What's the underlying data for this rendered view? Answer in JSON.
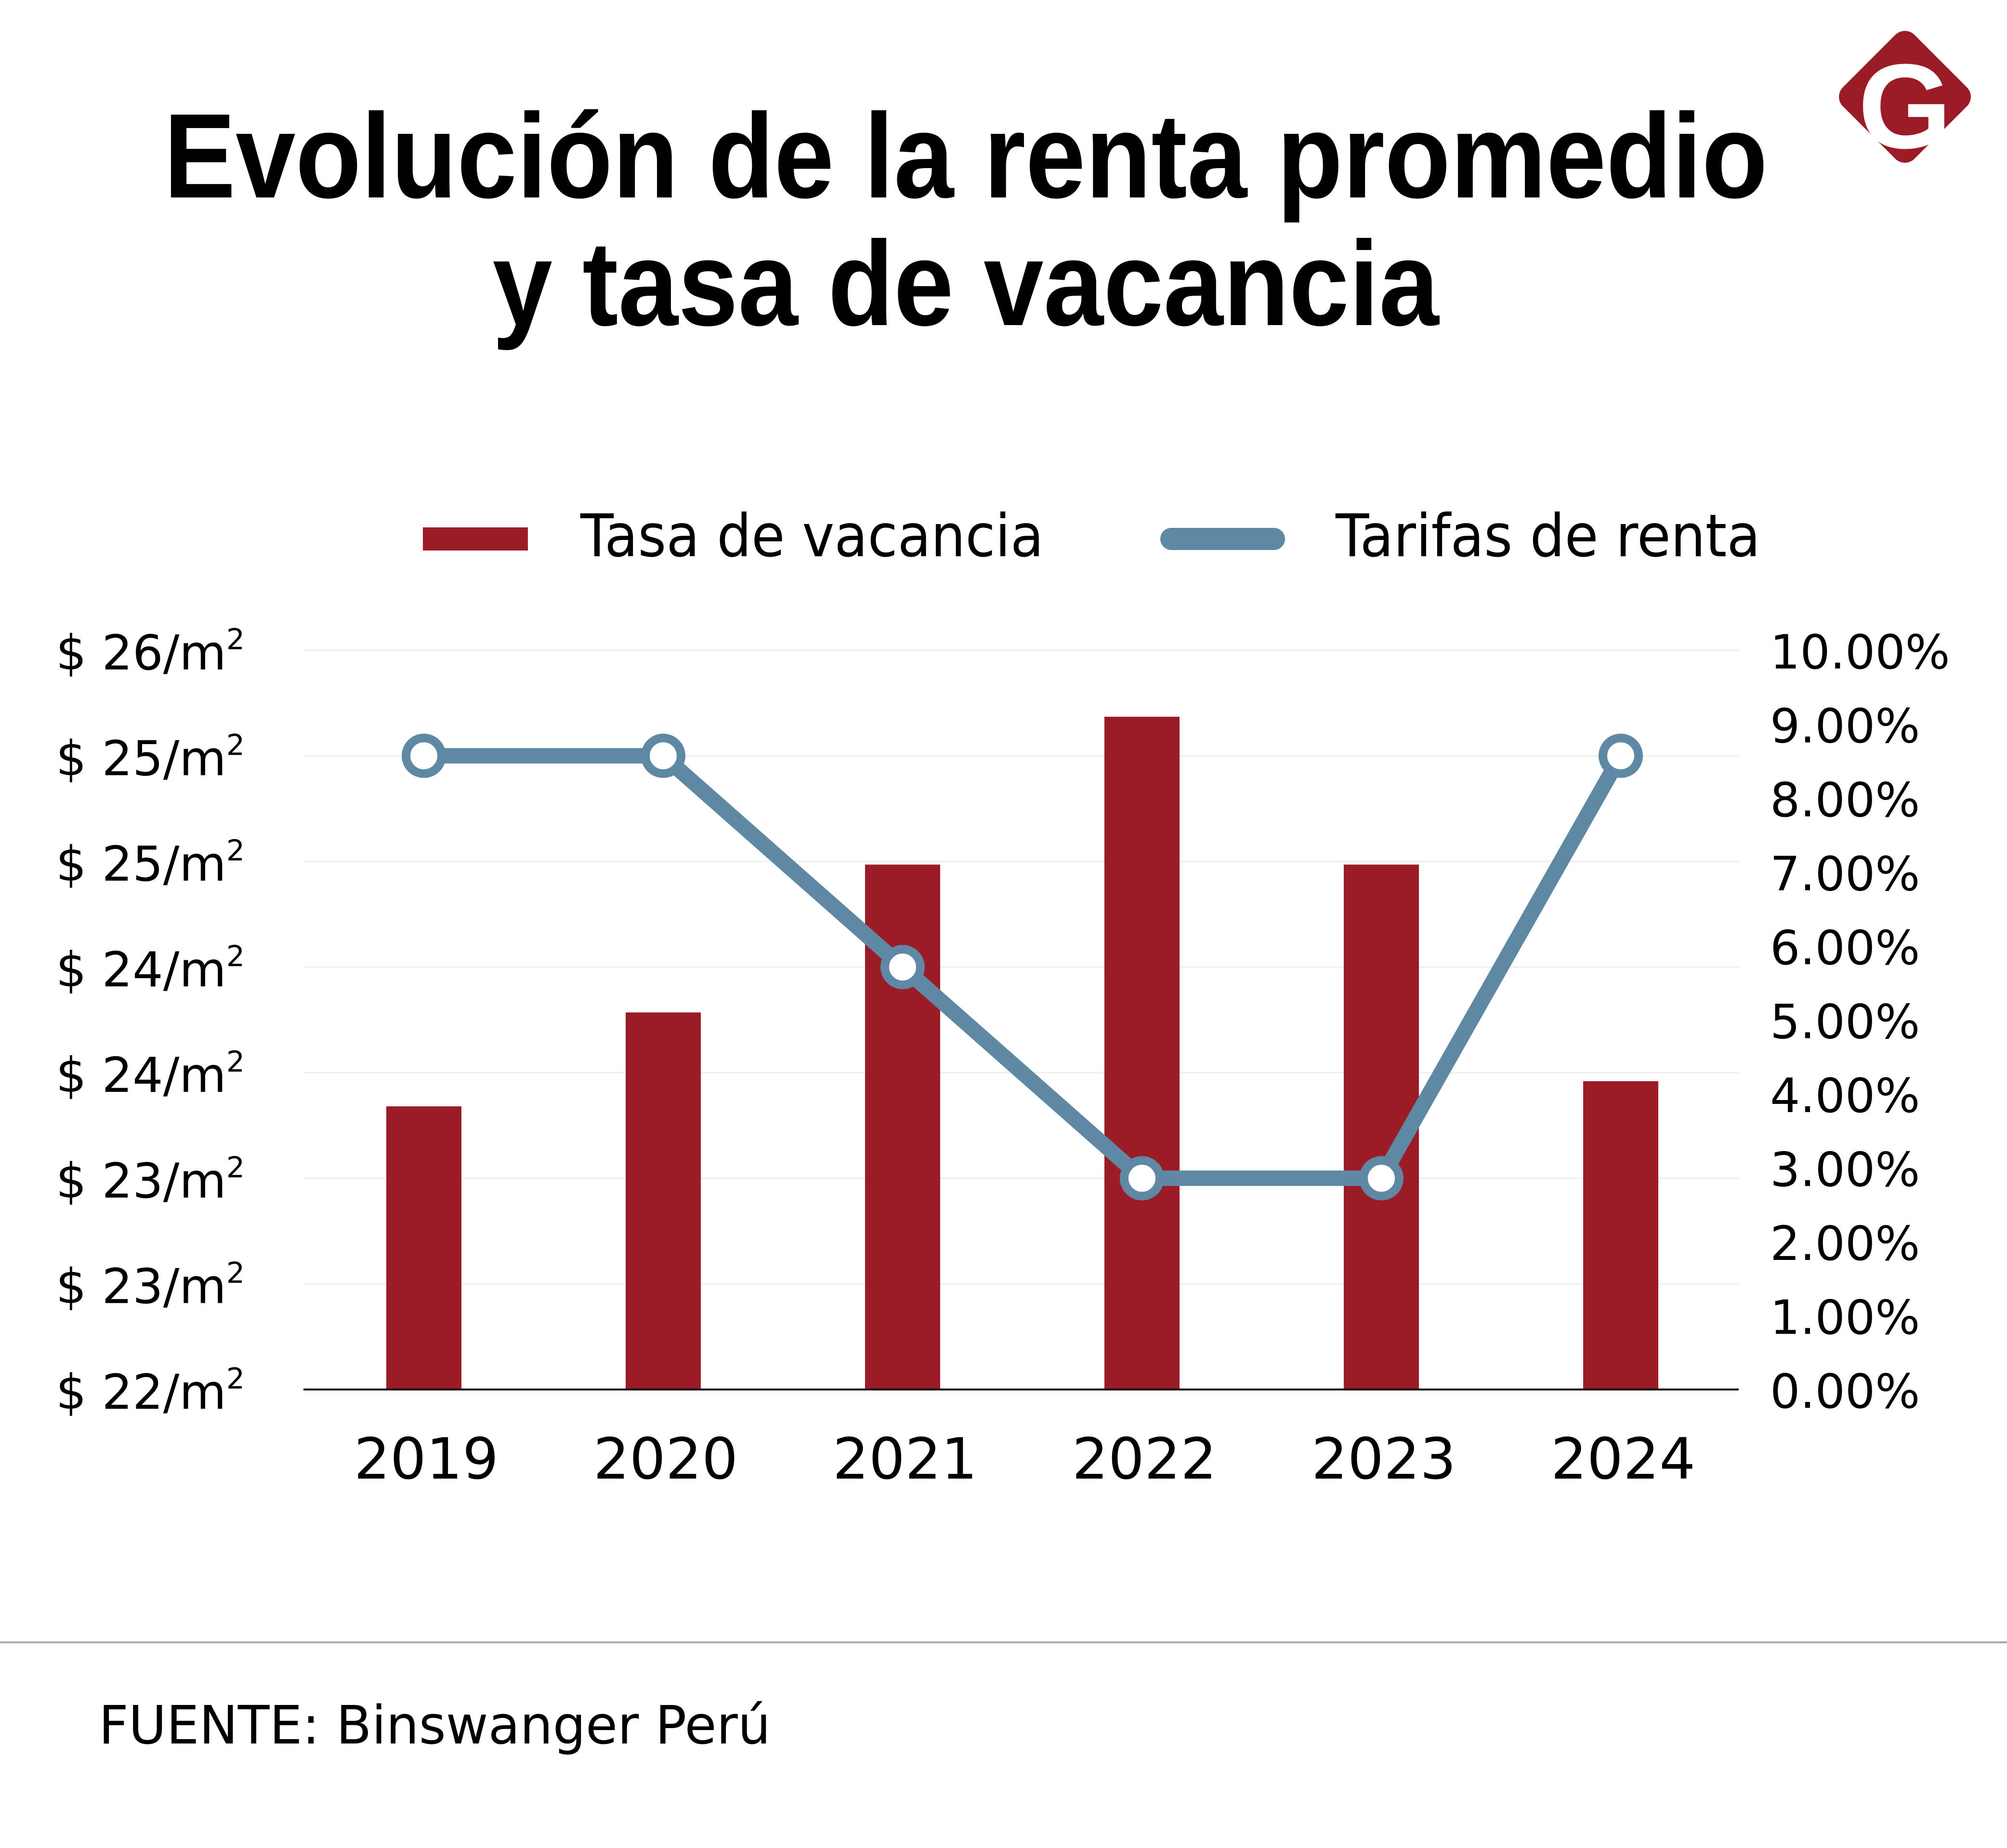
{
  "chart_data": {
    "type": "bar",
    "title_line1": "Evolución de la renta promedio",
    "title_line2": "y tasa de vacancia",
    "categories": [
      "2019",
      "2020",
      "2021",
      "2022",
      "2023",
      "2024"
    ],
    "series": [
      {
        "name": "Tasa de vacancia",
        "type": "bar",
        "axis": "right",
        "unit": "%",
        "color": "#9b1b27",
        "values": [
          3.83,
          5.1,
          7.1,
          9.1,
          7.1,
          4.17
        ]
      },
      {
        "name": "Tarifas de renta",
        "type": "line",
        "axis": "left",
        "unit": "$/m2",
        "color": "#5e88a3",
        "marker_fill": "#ffffff",
        "values": [
          25.0,
          25.0,
          24.0,
          23.0,
          23.0,
          25.0
        ]
      }
    ],
    "y_left": {
      "range": [
        22,
        25.5
      ],
      "ticks": [
        22,
        22.5,
        23,
        23.5,
        24,
        24.5,
        25,
        25.5
      ],
      "tick_labels": [
        "$ 22/m",
        "$ 23/m",
        "$ 23/m",
        "$ 24/m",
        "$ 24/m",
        "$ 25/m",
        "$ 25/m",
        "$ 26/m"
      ],
      "tick_superscript": "2"
    },
    "y_right": {
      "range": [
        0,
        10
      ],
      "ticks": [
        0,
        1,
        2,
        3,
        4,
        5,
        6,
        7,
        8,
        9,
        10
      ],
      "tick_labels": [
        "0.00%",
        "1.00%",
        "2.00%",
        "3.00%",
        "4.00%",
        "5.00%",
        "6.00%",
        "7.00%",
        "8.00%",
        "9.00%",
        "10.00%"
      ]
    },
    "legend": "top",
    "grid": true
  },
  "footer": {
    "source": "FUENTE: Binswanger Perú"
  },
  "logo": {
    "letter": "G",
    "color": "#9b1b27"
  },
  "colors": {
    "gridline": "#eeeeee",
    "axis": "#000000",
    "divider": "#aaaaaa",
    "text": "#000000"
  }
}
